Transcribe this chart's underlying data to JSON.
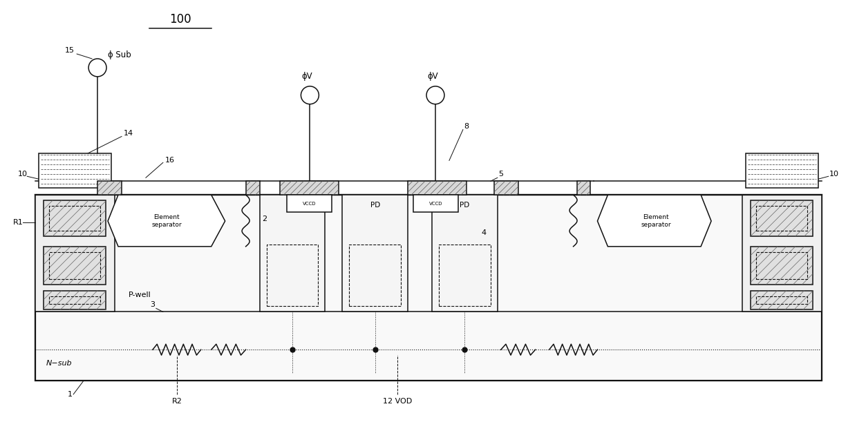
{
  "title": "100",
  "bg_color": "#ffffff",
  "fig_width": 12.4,
  "fig_height": 6.37,
  "labels": {
    "phi_sub": "ϕ Sub",
    "phi_v": "ϕV",
    "element_sep": "Element\nseparator",
    "p_well": "P-well",
    "n_sub": "N−sub",
    "vccd": "VCCD",
    "pd": "PD",
    "r1": "R1",
    "r2": "R2",
    "vod": "12 VOD",
    "num_1": "1",
    "num_2": "2",
    "num_3": "3",
    "num_4": "4",
    "num_5": "5",
    "num_8": "8",
    "num_10": "10",
    "num_14": "14",
    "num_15": "15",
    "num_16": "16"
  }
}
